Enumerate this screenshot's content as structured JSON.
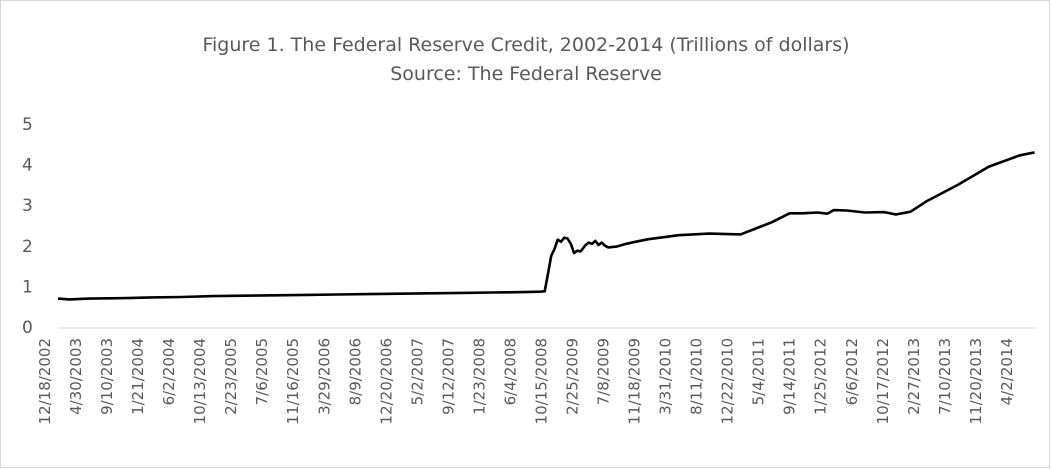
{
  "chart_data": {
    "type": "line",
    "title": "Figure 1. The Federal Reserve Credit, 2002-2014 (Trillions of dollars)",
    "subtitle": "Source: The Federal Reserve",
    "xlabel": "",
    "ylabel": "",
    "ylim": [
      0,
      5
    ],
    "yticks": [
      0,
      1,
      2,
      3,
      4,
      5
    ],
    "grid": false,
    "legend": "none",
    "line_color": "#000000",
    "x_tick_labels": [
      "12/18/2002",
      "4/30/2003",
      "9/10/2003",
      "1/21/2004",
      "6/2/2004",
      "10/13/2004",
      "2/23/2005",
      "7/6/2005",
      "11/16/2005",
      "3/29/2006",
      "8/9/2006",
      "12/20/2006",
      "5/2/2007",
      "9/12/2007",
      "1/23/2008",
      "6/4/2008",
      "10/15/2008",
      "2/25/2009",
      "7/8/2009",
      "11/18/2009",
      "3/31/2010",
      "8/11/2010",
      "12/22/2010",
      "5/4/2011",
      "9/14/2011",
      "1/25/2012",
      "6/6/2012",
      "10/17/2012",
      "2/27/2013",
      "7/10/2013",
      "11/20/2013",
      "4/2/2014"
    ],
    "series": [
      {
        "x": [
          "12/18/2002",
          "2/5/2003",
          "4/30/2003",
          "9/10/2003",
          "1/21/2004",
          "6/2/2004",
          "10/13/2004",
          "2/23/2005",
          "7/6/2005",
          "11/16/2005",
          "3/29/2006",
          "8/9/2006",
          "12/20/2006",
          "5/2/2007",
          "9/12/2007",
          "1/23/2008",
          "6/4/2008",
          "8/13/2008",
          "9/3/2008",
          "9/17/2008",
          "10/1/2008",
          "10/15/2008",
          "10/29/2008",
          "11/12/2008",
          "11/26/2008",
          "12/10/2008",
          "12/24/2008",
          "1/7/2009",
          "1/21/2009",
          "2/4/2009",
          "2/25/2009",
          "3/11/2009",
          "3/25/2009",
          "4/8/2009",
          "4/22/2009",
          "5/6/2009",
          "5/20/2009",
          "6/3/2009",
          "7/8/2009",
          "8/19/2009",
          "9/30/2009",
          "11/18/2009",
          "3/31/2010",
          "8/11/2010",
          "12/22/2010",
          "5/4/2011",
          "7/20/2011",
          "9/14/2011",
          "11/16/2011",
          "12/28/2011",
          "1/25/2012",
          "3/21/2012",
          "6/6/2012",
          "8/29/2012",
          "10/17/2012",
          "12/19/2012",
          "2/27/2013",
          "7/10/2013",
          "11/20/2013",
          "4/2/2014",
          "6/4/2014"
        ],
        "values": [
          0.7,
          0.68,
          0.7,
          0.71,
          0.73,
          0.74,
          0.76,
          0.77,
          0.78,
          0.79,
          0.8,
          0.81,
          0.82,
          0.83,
          0.84,
          0.85,
          0.86,
          0.87,
          0.88,
          1.3,
          1.75,
          1.92,
          2.15,
          2.1,
          2.2,
          2.18,
          2.05,
          1.82,
          1.88,
          1.86,
          2.02,
          2.08,
          2.05,
          2.12,
          2.02,
          2.08,
          2.0,
          1.96,
          1.98,
          2.05,
          2.1,
          2.16,
          2.26,
          2.3,
          2.28,
          2.58,
          2.8,
          2.8,
          2.82,
          2.79,
          2.88,
          2.87,
          2.82,
          2.83,
          2.77,
          2.84,
          3.1,
          3.5,
          3.95,
          4.23,
          4.3
        ]
      }
    ]
  }
}
